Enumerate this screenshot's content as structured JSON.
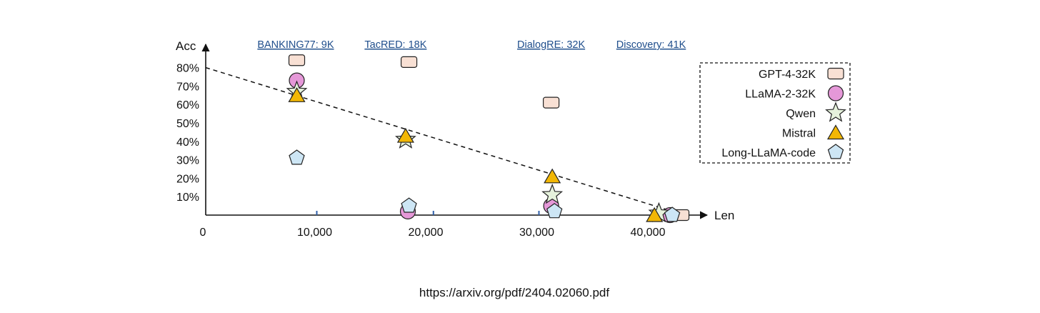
{
  "chart_data": {
    "type": "scatter",
    "xlabel": "Len",
    "ylabel": "Acc",
    "xlim": [
      0,
      45000
    ],
    "ylim": [
      0,
      90
    ],
    "x_ticks": [
      {
        "value": 0,
        "label": "0"
      },
      {
        "value": 10000,
        "label": "10,000"
      },
      {
        "value": 20000,
        "label": "20,000"
      },
      {
        "value": 30000,
        "label": "30,000"
      },
      {
        "value": 40000,
        "label": "40,000"
      }
    ],
    "y_ticks": [
      {
        "value": 10,
        "label": "10%"
      },
      {
        "value": 20,
        "label": "20%"
      },
      {
        "value": 30,
        "label": "30%"
      },
      {
        "value": 40,
        "label": "40%"
      },
      {
        "value": 50,
        "label": "50%"
      },
      {
        "value": 60,
        "label": "60%"
      },
      {
        "value": 70,
        "label": "70%"
      },
      {
        "value": 80,
        "label": "80%"
      }
    ],
    "annotations": [
      {
        "label": "BANKING77: 9K",
        "x": 9000,
        "tick": 10000
      },
      {
        "label": "TacRED: 18K",
        "x": 18000,
        "tick": 20500
      },
      {
        "label": "DialogRE: 32K",
        "x": 32000,
        "tick": 30000
      },
      {
        "label": "Discovery: 41K",
        "x": 41000,
        "tick": null
      }
    ],
    "trend_line": {
      "from": [
        0,
        80
      ],
      "to": [
        41500,
        3
      ]
    },
    "series": [
      {
        "name": "GPT-4-32K",
        "marker": "rounded-square",
        "color": "#f8e0d4",
        "points": [
          [
            8200,
            84
          ],
          [
            18300,
            83
          ],
          [
            31100,
            61
          ],
          [
            42800,
            0
          ]
        ]
      },
      {
        "name": "LLaMA-2-32K",
        "marker": "circle",
        "color": "#e598d8",
        "points": [
          [
            8200,
            73
          ],
          [
            18200,
            2
          ],
          [
            31100,
            5
          ],
          [
            41800,
            0
          ]
        ]
      },
      {
        "name": "Qwen",
        "marker": "star",
        "color": "#e6f2dc",
        "points": [
          [
            8200,
            67
          ],
          [
            18000,
            41
          ],
          [
            31200,
            11
          ],
          [
            40800,
            1
          ]
        ]
      },
      {
        "name": "Mistral",
        "marker": "triangle",
        "color": "#f2b705",
        "points": [
          [
            8200,
            65
          ],
          [
            18000,
            43
          ],
          [
            31200,
            21
          ],
          [
            40400,
            0
          ]
        ]
      },
      {
        "name": "Long-LLaMA-code",
        "marker": "pentagon",
        "color": "#cde6f5",
        "points": [
          [
            8200,
            31
          ],
          [
            18300,
            5
          ],
          [
            31400,
            2
          ],
          [
            42000,
            0
          ]
        ]
      }
    ],
    "legend_position": "top-right",
    "grid": false
  },
  "footer": {
    "source": "https://arxiv.org/pdf/2404.02060.pdf"
  }
}
